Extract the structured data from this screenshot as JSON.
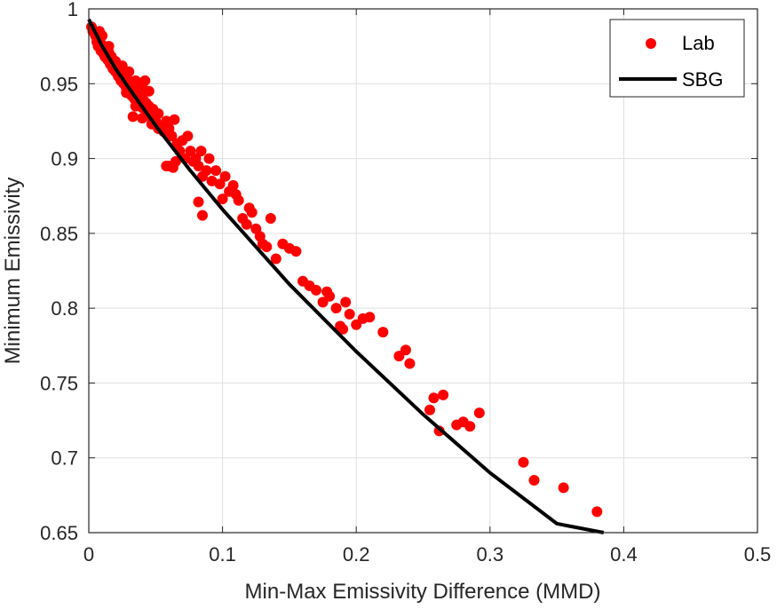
{
  "chart_data": {
    "type": "scatter",
    "title": "",
    "xlabel": "Min-Max Emissivity Difference (MMD)",
    "ylabel": "Minimum Emissivity",
    "xlim": [
      0,
      0.5
    ],
    "ylim": [
      0.65,
      1
    ],
    "x_ticks": [
      0,
      0.1,
      0.2,
      0.3,
      0.4,
      0.5
    ],
    "x_tick_labels": [
      "0",
      "0.1",
      "0.2",
      "0.3",
      "0.4",
      "0.5"
    ],
    "y_ticks": [
      0.65,
      0.7,
      0.75,
      0.8,
      0.85,
      0.9,
      0.95,
      1
    ],
    "y_tick_labels": [
      "0.65",
      "0.7",
      "0.75",
      "0.8",
      "0.85",
      "0.9",
      "0.95",
      "1"
    ],
    "grid": true,
    "legend_position": "top-right",
    "series": [
      {
        "name": "Lab",
        "kind": "scatter",
        "color": "#ff0000",
        "points": [
          [
            0.002,
            0.988
          ],
          [
            0.003,
            0.985
          ],
          [
            0.005,
            0.982
          ],
          [
            0.006,
            0.978
          ],
          [
            0.007,
            0.975
          ],
          [
            0.008,
            0.98
          ],
          [
            0.009,
            0.972
          ],
          [
            0.01,
            0.976
          ],
          [
            0.011,
            0.97
          ],
          [
            0.012,
            0.968
          ],
          [
            0.013,
            0.974
          ],
          [
            0.014,
            0.966
          ],
          [
            0.015,
            0.971
          ],
          [
            0.016,
            0.963
          ],
          [
            0.017,
            0.968
          ],
          [
            0.018,
            0.96
          ],
          [
            0.019,
            0.965
          ],
          [
            0.02,
            0.958
          ],
          [
            0.021,
            0.962
          ],
          [
            0.022,
            0.955
          ],
          [
            0.023,
            0.96
          ],
          [
            0.024,
            0.952
          ],
          [
            0.025,
            0.957
          ],
          [
            0.026,
            0.95
          ],
          [
            0.027,
            0.955
          ],
          [
            0.028,
            0.947
          ],
          [
            0.029,
            0.953
          ],
          [
            0.03,
            0.945
          ],
          [
            0.031,
            0.95
          ],
          [
            0.032,
            0.942
          ],
          [
            0.033,
            0.948
          ],
          [
            0.034,
            0.94
          ],
          [
            0.035,
            0.946
          ],
          [
            0.036,
            0.938
          ],
          [
            0.037,
            0.944
          ],
          [
            0.038,
            0.936
          ],
          [
            0.039,
            0.941
          ],
          [
            0.04,
            0.934
          ],
          [
            0.041,
            0.939
          ],
          [
            0.042,
            0.952
          ],
          [
            0.043,
            0.937
          ],
          [
            0.044,
            0.93
          ],
          [
            0.045,
            0.935
          ],
          [
            0.046,
            0.928
          ],
          [
            0.048,
            0.933
          ],
          [
            0.05,
            0.925
          ],
          [
            0.052,
            0.93
          ],
          [
            0.054,
            0.922
          ],
          [
            0.056,
            0.918
          ],
          [
            0.058,
            0.925
          ],
          [
            0.06,
            0.92
          ],
          [
            0.062,
            0.915
          ],
          [
            0.064,
            0.926
          ],
          [
            0.066,
            0.91
          ],
          [
            0.068,
            0.905
          ],
          [
            0.07,
            0.912
          ],
          [
            0.072,
            0.9
          ],
          [
            0.074,
            0.915
          ],
          [
            0.076,
            0.905
          ],
          [
            0.078,
            0.898
          ],
          [
            0.06,
            0.895
          ],
          [
            0.065,
            0.898
          ],
          [
            0.028,
            0.944
          ],
          [
            0.033,
            0.928
          ],
          [
            0.04,
            0.927
          ],
          [
            0.02,
            0.965
          ],
          [
            0.025,
            0.962
          ],
          [
            0.03,
            0.958
          ],
          [
            0.035,
            0.952
          ],
          [
            0.045,
            0.945
          ],
          [
            0.08,
            0.9
          ],
          [
            0.082,
            0.895
          ],
          [
            0.084,
            0.905
          ],
          [
            0.085,
            0.888
          ],
          [
            0.088,
            0.892
          ],
          [
            0.09,
            0.9
          ],
          [
            0.092,
            0.885
          ],
          [
            0.095,
            0.892
          ],
          [
            0.098,
            0.883
          ],
          [
            0.1,
            0.873
          ],
          [
            0.102,
            0.888
          ],
          [
            0.105,
            0.878
          ],
          [
            0.108,
            0.882
          ],
          [
            0.11,
            0.876
          ],
          [
            0.112,
            0.872
          ],
          [
            0.115,
            0.86
          ],
          [
            0.118,
            0.856
          ],
          [
            0.12,
            0.867
          ],
          [
            0.122,
            0.864
          ],
          [
            0.125,
            0.853
          ],
          [
            0.128,
            0.848
          ],
          [
            0.13,
            0.843
          ],
          [
            0.133,
            0.841
          ],
          [
            0.136,
            0.86
          ],
          [
            0.14,
            0.833
          ],
          [
            0.145,
            0.843
          ],
          [
            0.15,
            0.84
          ],
          [
            0.155,
            0.838
          ],
          [
            0.16,
            0.818
          ],
          [
            0.165,
            0.815
          ],
          [
            0.17,
            0.812
          ],
          [
            0.175,
            0.804
          ],
          [
            0.178,
            0.811
          ],
          [
            0.18,
            0.808
          ],
          [
            0.185,
            0.8
          ],
          [
            0.188,
            0.788
          ],
          [
            0.19,
            0.786
          ],
          [
            0.192,
            0.804
          ],
          [
            0.195,
            0.796
          ],
          [
            0.2,
            0.789
          ],
          [
            0.205,
            0.793
          ],
          [
            0.21,
            0.794
          ],
          [
            0.22,
            0.784
          ],
          [
            0.232,
            0.768
          ],
          [
            0.237,
            0.772
          ],
          [
            0.24,
            0.763
          ],
          [
            0.255,
            0.732
          ],
          [
            0.258,
            0.74
          ],
          [
            0.262,
            0.718
          ],
          [
            0.265,
            0.742
          ],
          [
            0.275,
            0.722
          ],
          [
            0.28,
            0.724
          ],
          [
            0.285,
            0.721
          ],
          [
            0.292,
            0.73
          ],
          [
            0.325,
            0.697
          ],
          [
            0.333,
            0.685
          ],
          [
            0.355,
            0.68
          ],
          [
            0.38,
            0.664
          ],
          [
            0.082,
            0.871
          ],
          [
            0.085,
            0.862
          ],
          [
            0.058,
            0.895
          ],
          [
            0.063,
            0.894
          ],
          [
            0.052,
            0.92
          ],
          [
            0.047,
            0.923
          ],
          [
            0.038,
            0.945
          ],
          [
            0.015,
            0.975
          ],
          [
            0.01,
            0.982
          ],
          [
            0.008,
            0.985
          ],
          [
            0.035,
            0.935
          ],
          [
            0.04,
            0.948
          ]
        ]
      },
      {
        "name": "SBG",
        "kind": "line",
        "color": "#000000",
        "points": [
          [
            0,
            0.993
          ],
          [
            0.01,
            0.975
          ],
          [
            0.02,
            0.96
          ],
          [
            0.03,
            0.947
          ],
          [
            0.05,
            0.922
          ],
          [
            0.075,
            0.893
          ],
          [
            0.1,
            0.866
          ],
          [
            0.15,
            0.816
          ],
          [
            0.2,
            0.771
          ],
          [
            0.25,
            0.729
          ],
          [
            0.3,
            0.69
          ],
          [
            0.35,
            0.656
          ],
          [
            0.385,
            0.65
          ]
        ]
      }
    ]
  }
}
